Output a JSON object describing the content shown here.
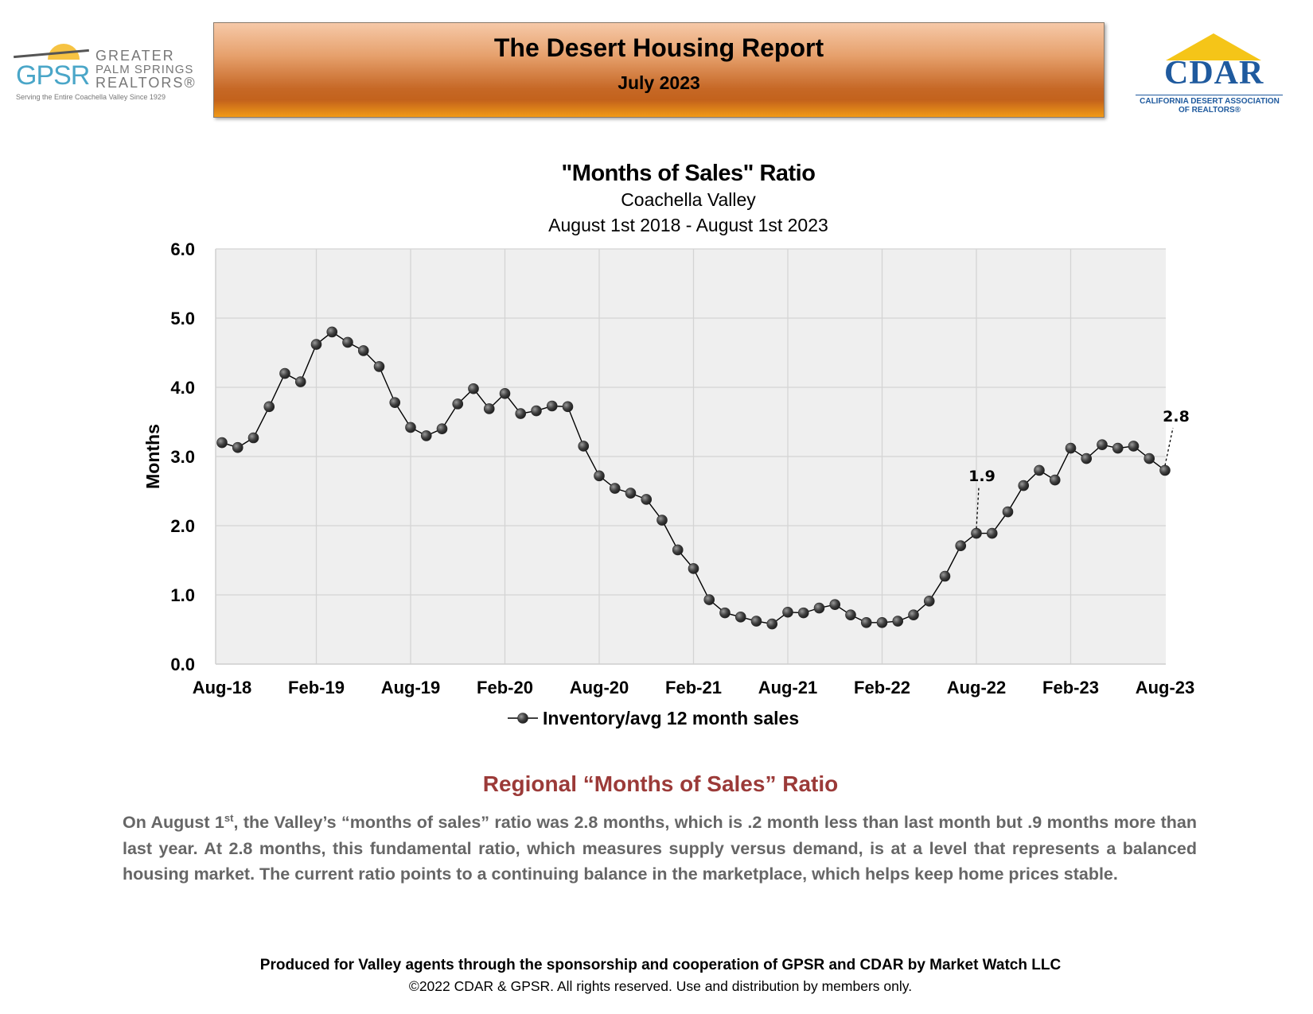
{
  "header": {
    "gpsr_logo": {
      "acronym": "GPSR",
      "name_line1": "GREATER",
      "name_line2": "PALM SPRINGS",
      "name_line3": "REALTORS®",
      "tagline": "Serving the Entire Coachella Valley Since 1929"
    },
    "title": "The Desert Housing Report",
    "subtitle": "July 2023",
    "cdar_logo": {
      "text": "CDAR",
      "sub_line1": "CALIFORNIA DESERT ASSOCIATION",
      "sub_line2": "OF REALTORS®"
    }
  },
  "chart_data": {
    "type": "line",
    "title": "\"Months of Sales\" Ratio",
    "subtitle_1": "Coachella Valley",
    "subtitle_2": "August 1st 2018 - August 1st 2023",
    "ylabel": "Months",
    "ylim": [
      0,
      6
    ],
    "yticks": [
      "0.0",
      "1.0",
      "2.0",
      "3.0",
      "4.0",
      "5.0",
      "6.0"
    ],
    "xticks": [
      "Aug-18",
      "Feb-19",
      "Aug-19",
      "Feb-20",
      "Aug-20",
      "Feb-21",
      "Aug-21",
      "Feb-22",
      "Aug-22",
      "Feb-23",
      "Aug-23"
    ],
    "grid": true,
    "legend_position": "bottom",
    "series": [
      {
        "name": "Inventory/avg 12 month sales",
        "color": "#000000",
        "values": [
          3.2,
          3.13,
          3.27,
          3.72,
          4.2,
          4.08,
          4.62,
          4.8,
          4.65,
          4.53,
          4.3,
          3.78,
          3.42,
          3.3,
          3.4,
          3.76,
          3.98,
          3.69,
          3.91,
          3.62,
          3.66,
          3.73,
          3.72,
          3.15,
          2.72,
          2.54,
          2.47,
          2.38,
          2.08,
          1.65,
          1.38,
          0.93,
          0.74,
          0.68,
          0.62,
          0.58,
          0.75,
          0.74,
          0.81,
          0.86,
          0.71,
          0.6,
          0.6,
          0.62,
          0.71,
          0.91,
          1.27,
          1.71,
          1.89,
          1.89,
          2.2,
          2.58,
          2.8,
          2.66,
          3.12,
          2.97,
          3.17,
          3.12,
          3.15,
          2.97,
          2.8
        ]
      }
    ],
    "annotations": [
      {
        "label": "1.9",
        "index": 48
      },
      {
        "label": "2.8",
        "index": 60
      }
    ]
  },
  "section": {
    "heading": "Regional “Months of Sales” Ratio",
    "para_pre": "On August 1",
    "para_sup": "st",
    "para_post": ", the Valley’s “months of sales” ratio was 2.8 months, which is .2 month less than last month but .9 months more than last year. At 2.8 months, this fundamental ratio, which measures supply versus demand, is at a level that represents a balanced housing market. The current ratio points to a continuing balance in the marketplace, which helps keep home prices stable."
  },
  "footer": {
    "line1": "Produced for Valley agents through the sponsorship and cooperation of GPSR and CDAR by Market Watch LLC",
    "line2": "©2022 CDAR & GPSR.  All rights reserved.  Use and distribution by members only."
  }
}
